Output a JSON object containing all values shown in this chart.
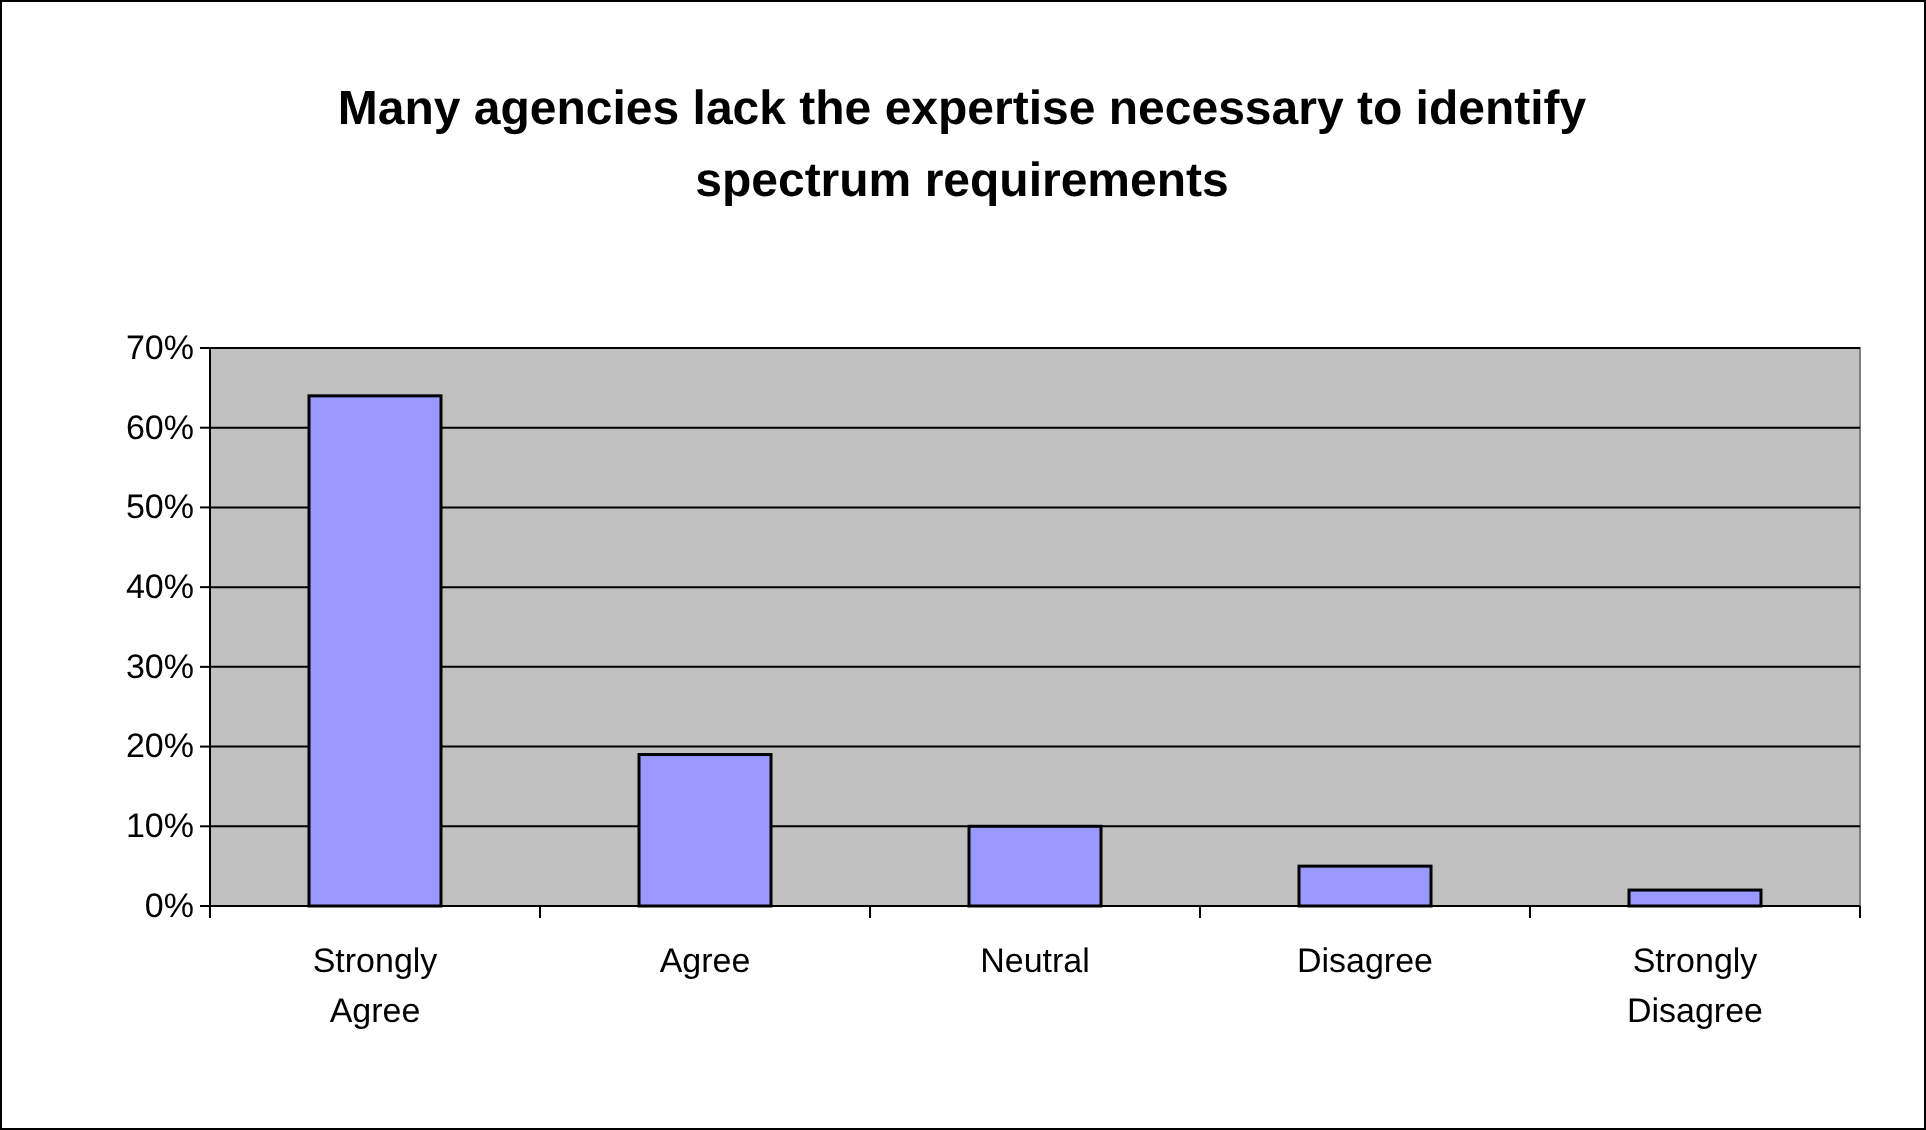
{
  "chart_data": {
    "type": "bar",
    "title": "Many agencies lack the expertise necessary to identify spectrum requirements",
    "categories": [
      "Strongly Agree",
      "Agree",
      "Neutral",
      "Disagree",
      "Strongly Disagree"
    ],
    "values": [
      64,
      19,
      10,
      5,
      2
    ],
    "color": "#9999ff",
    "ylim": [
      0,
      70
    ],
    "yticks": [
      {
        "value": 0,
        "label": "0%"
      },
      {
        "value": 10,
        "label": "10%"
      },
      {
        "value": 20,
        "label": "20%"
      },
      {
        "value": 30,
        "label": "30%"
      },
      {
        "value": 40,
        "label": "40%"
      },
      {
        "value": 50,
        "label": "50%"
      },
      {
        "value": 60,
        "label": "60%"
      },
      {
        "value": 70,
        "label": "70%"
      }
    ],
    "grid": "y"
  }
}
